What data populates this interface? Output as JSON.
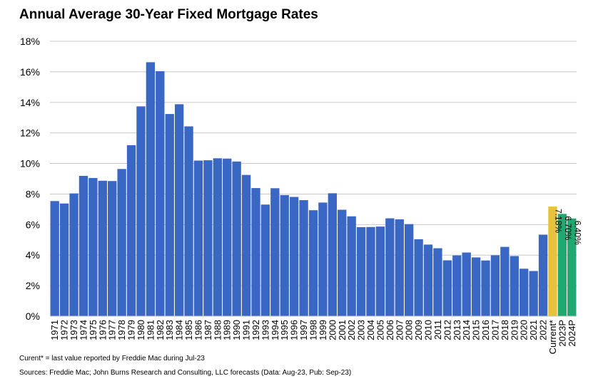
{
  "title": "Annual Average 30-Year Fixed Mortgage Rates",
  "footnote": "Curent* = last value reported by Freddie Mac during Jul-23",
  "sources": "Sources: Freddie Mac; John Burns Research and Consulting, LLC forecasts (Data: Aug-23, Pub: Sep-23)",
  "colors": {
    "historical": "#3A67C4",
    "current": "#E8C23A",
    "forecast": "#1FA870",
    "grid": "#C8C8C8",
    "axis": "#000000"
  },
  "chart_data": {
    "type": "bar",
    "title": "Annual Average 30-Year Fixed Mortgage Rates",
    "xlabel": "",
    "ylabel": "",
    "ylim": [
      0,
      18
    ],
    "yticks": [
      0,
      2,
      4,
      6,
      8,
      10,
      12,
      14,
      16,
      18
    ],
    "ytick_labels": [
      "0%",
      "2%",
      "4%",
      "6%",
      "8%",
      "10%",
      "12%",
      "14%",
      "16%",
      "18%"
    ],
    "grid": true,
    "categories": [
      "1971",
      "1972",
      "1973",
      "1974",
      "1975",
      "1976",
      "1977",
      "1978",
      "1979",
      "1980",
      "1981",
      "1982",
      "1983",
      "1984",
      "1985",
      "1986",
      "1987",
      "1988",
      "1989",
      "1990",
      "1991",
      "1992",
      "1993",
      "1994",
      "1995",
      "1996",
      "1997",
      "1998",
      "1999",
      "2000",
      "2001",
      "2002",
      "2003",
      "2004",
      "2005",
      "2006",
      "2007",
      "2008",
      "2009",
      "2010",
      "2011",
      "2012",
      "2013",
      "2014",
      "2015",
      "2016",
      "2017",
      "2018",
      "2019",
      "2020",
      "2021",
      "2022",
      "Current*",
      "2023P",
      "2024P"
    ],
    "values": [
      7.54,
      7.38,
      8.04,
      9.19,
      9.05,
      8.87,
      8.85,
      9.64,
      11.2,
      13.74,
      16.63,
      16.04,
      13.24,
      13.88,
      12.43,
      10.19,
      10.21,
      10.34,
      10.32,
      10.13,
      9.25,
      8.39,
      7.31,
      8.38,
      7.93,
      7.81,
      7.6,
      6.94,
      7.44,
      8.05,
      6.97,
      6.54,
      5.83,
      5.84,
      5.87,
      6.41,
      6.34,
      6.03,
      5.04,
      4.69,
      4.45,
      3.66,
      3.98,
      4.17,
      3.85,
      3.65,
      3.99,
      4.54,
      3.94,
      3.11,
      2.96,
      5.34,
      7.18,
      6.7,
      6.4
    ],
    "bar_groups": [
      "historical",
      "historical",
      "historical",
      "historical",
      "historical",
      "historical",
      "historical",
      "historical",
      "historical",
      "historical",
      "historical",
      "historical",
      "historical",
      "historical",
      "historical",
      "historical",
      "historical",
      "historical",
      "historical",
      "historical",
      "historical",
      "historical",
      "historical",
      "historical",
      "historical",
      "historical",
      "historical",
      "historical",
      "historical",
      "historical",
      "historical",
      "historical",
      "historical",
      "historical",
      "historical",
      "historical",
      "historical",
      "historical",
      "historical",
      "historical",
      "historical",
      "historical",
      "historical",
      "historical",
      "historical",
      "historical",
      "historical",
      "historical",
      "historical",
      "historical",
      "historical",
      "historical",
      "current",
      "forecast",
      "forecast"
    ],
    "data_labels": [
      {
        "category": "Current*",
        "text": "7.18%"
      },
      {
        "category": "2023P",
        "text": "6.70%"
      },
      {
        "category": "2024P",
        "text": "6.40%"
      }
    ],
    "legend": "none"
  }
}
